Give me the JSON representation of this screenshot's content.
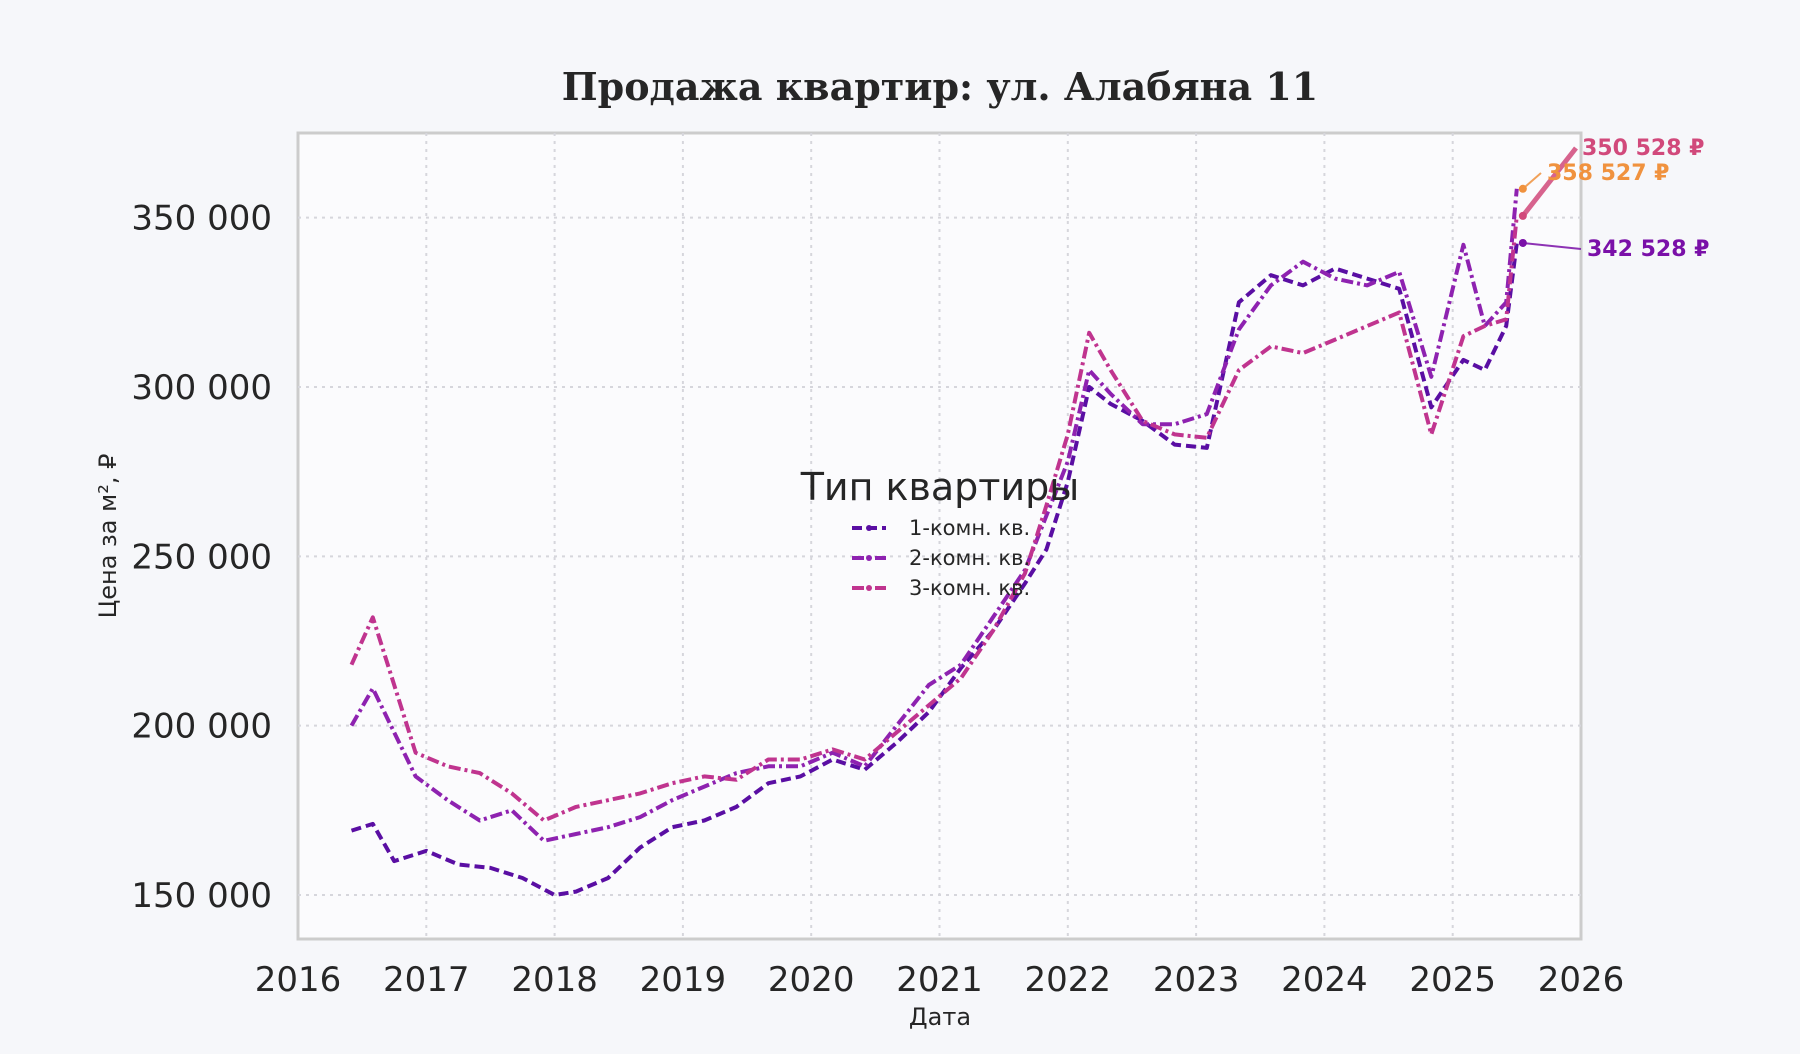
{
  "chart_data": {
    "type": "line",
    "title": "Продажа квартир: ул. Алабяна 11",
    "xlabel": "Дата",
    "ylabel": "Цена за м², ₽",
    "x_ticks": [
      "2016",
      "2017",
      "2018",
      "2019",
      "2020",
      "2021",
      "2022",
      "2023",
      "2024",
      "2025",
      "2026"
    ],
    "y_ticks": [
      "150 000",
      "200 000",
      "250 000",
      "300 000",
      "350 000"
    ],
    "xlim": [
      "2016-01-01",
      "2026-01-01"
    ],
    "ylim": [
      137000,
      375000
    ],
    "grid": true,
    "legend": {
      "title": "Тип квартиры",
      "placement": "center"
    },
    "series": [
      {
        "name": "1-комн. кв.",
        "color": "#5a0ea3",
        "line_style": "dashed",
        "x": [
          "2016-06",
          "2016-08",
          "2016-10",
          "2017-01",
          "2017-04",
          "2017-07",
          "2017-10",
          "2018-01",
          "2018-03",
          "2018-06",
          "2018-09",
          "2018-12",
          "2019-03",
          "2019-06",
          "2019-09",
          "2019-12",
          "2020-03",
          "2020-06",
          "2020-09",
          "2020-12",
          "2021-03",
          "2021-06",
          "2021-09",
          "2021-11",
          "2022-01",
          "2022-03",
          "2022-05",
          "2022-08",
          "2022-11",
          "2023-02",
          "2023-05",
          "2023-08",
          "2023-11",
          "2024-02",
          "2024-05",
          "2024-08",
          "2024-11",
          "2025-02",
          "2025-04",
          "2025-06",
          "2025-07"
        ],
        "values": [
          169000,
          171000,
          160000,
          163000,
          159000,
          158000,
          155000,
          150000,
          151000,
          155000,
          164000,
          170000,
          172000,
          176000,
          183000,
          185000,
          190000,
          187000,
          195000,
          204000,
          217000,
          228000,
          242000,
          252000,
          272000,
          300000,
          295000,
          290000,
          283000,
          282000,
          325000,
          333000,
          330000,
          335000,
          332000,
          329000,
          294000,
          308000,
          305000,
          318000,
          342528
        ]
      },
      {
        "name": "2-комн. кв.",
        "color": "#8e22b0",
        "line_style": "dashdot",
        "x": [
          "2016-06",
          "2016-08",
          "2016-10",
          "2016-12",
          "2017-03",
          "2017-06",
          "2017-09",
          "2017-12",
          "2018-03",
          "2018-06",
          "2018-09",
          "2018-12",
          "2019-03",
          "2019-06",
          "2019-09",
          "2019-12",
          "2020-03",
          "2020-06",
          "2020-09",
          "2020-12",
          "2021-03",
          "2021-06",
          "2021-09",
          "2021-11",
          "2022-01",
          "2022-03",
          "2022-05",
          "2022-08",
          "2022-11",
          "2023-02",
          "2023-05",
          "2023-08",
          "2023-11",
          "2024-02",
          "2024-05",
          "2024-08",
          "2024-11",
          "2025-02",
          "2025-04",
          "2025-06",
          "2025-07"
        ],
        "values": [
          200000,
          211000,
          198000,
          185000,
          178000,
          172000,
          175000,
          166000,
          168000,
          170000,
          173000,
          178000,
          182000,
          186000,
          188000,
          188000,
          192000,
          188000,
          200000,
          212000,
          218000,
          232000,
          246000,
          262000,
          278000,
          305000,
          298000,
          289000,
          289000,
          292000,
          317000,
          330000,
          337000,
          332000,
          330000,
          334000,
          303000,
          342000,
          318000,
          325000,
          358527
        ]
      },
      {
        "name": "3-комн. кв.",
        "color": "#c0348f",
        "line_style": "dashdot",
        "x": [
          "2016-06",
          "2016-08",
          "2016-10",
          "2016-12",
          "2017-03",
          "2017-06",
          "2017-09",
          "2017-12",
          "2018-03",
          "2018-06",
          "2018-09",
          "2018-12",
          "2019-03",
          "2019-06",
          "2019-09",
          "2019-12",
          "2020-03",
          "2020-06",
          "2020-09",
          "2020-12",
          "2021-03",
          "2021-06",
          "2021-09",
          "2021-11",
          "2022-01",
          "2022-03",
          "2022-05",
          "2022-08",
          "2022-11",
          "2023-02",
          "2023-05",
          "2023-08",
          "2023-11",
          "2024-02",
          "2024-05",
          "2024-08",
          "2024-11",
          "2025-02",
          "2025-04",
          "2025-06",
          "2025-07"
        ],
        "values": [
          218000,
          232000,
          212000,
          192000,
          188000,
          186000,
          180000,
          172000,
          176000,
          178000,
          180000,
          183000,
          185000,
          184000,
          190000,
          190000,
          193000,
          190000,
          198000,
          206000,
          214000,
          228000,
          245000,
          265000,
          286000,
          316000,
          305000,
          290000,
          286000,
          285000,
          305000,
          312000,
          310000,
          314000,
          318000,
          322000,
          286000,
          315000,
          318000,
          320000,
          350528
        ]
      }
    ],
    "annotations": [
      {
        "text": "350 528 ₽",
        "color": "#d1497b",
        "series": "3-комн. кв."
      },
      {
        "text": "358 527 ₽",
        "color": "#f0923e",
        "series": "2-комн. кв."
      },
      {
        "text": "342 528 ₽",
        "color": "#7a10a8",
        "series": "1-комн. кв."
      }
    ]
  }
}
